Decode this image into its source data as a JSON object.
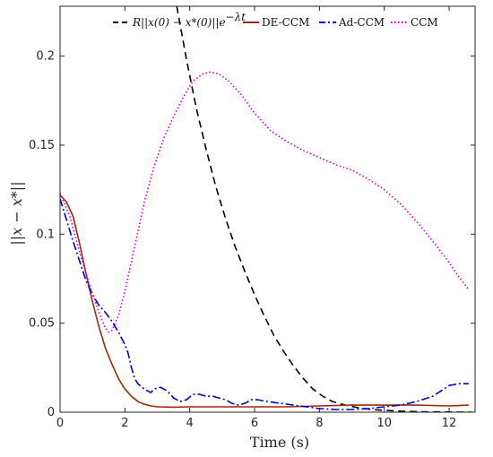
{
  "chart_data": {
    "type": "line",
    "title": "",
    "xlabel": "Time (s)",
    "ylabel": "||x − x*||",
    "xlim": [
      0,
      12.8
    ],
    "ylim": [
      0,
      0.228
    ],
    "xticks": [
      0,
      2,
      4,
      6,
      8,
      10,
      12
    ],
    "yticks": [
      0,
      0.05,
      0.1,
      0.15,
      0.2
    ],
    "ytick_labels": [
      "0",
      "0.05",
      "0.1",
      "0.15",
      "0.2"
    ],
    "grid": false,
    "legend": {
      "position": "top",
      "entries": [
        {
          "label_prefix": "R",
          "label_main": "||x(0) − x*(0)||",
          "label_e": "e",
          "label_sup": "−λt"
        },
        {
          "label": "DE-CCM"
        },
        {
          "label": "Ad-CCM"
        },
        {
          "label": "CCM"
        }
      ]
    },
    "series": [
      {
        "key": "bound",
        "color": "#000000",
        "dash": "8,5",
        "points": [
          [
            3.6,
            0.228
          ],
          [
            3.9,
            0.198
          ],
          [
            4.2,
            0.171
          ],
          [
            4.5,
            0.148
          ],
          [
            4.8,
            0.127
          ],
          [
            5.1,
            0.109
          ],
          [
            5.4,
            0.093
          ],
          [
            5.7,
            0.079
          ],
          [
            6.0,
            0.066
          ],
          [
            6.3,
            0.054
          ],
          [
            6.6,
            0.043
          ],
          [
            6.9,
            0.034
          ],
          [
            7.2,
            0.026
          ],
          [
            7.5,
            0.019
          ],
          [
            7.8,
            0.013
          ],
          [
            8.1,
            0.009
          ],
          [
            8.4,
            0.006
          ],
          [
            8.8,
            0.004
          ],
          [
            9.2,
            0.0025
          ],
          [
            9.6,
            0.0015
          ],
          [
            10.0,
            0.001
          ],
          [
            10.6,
            0.0005
          ],
          [
            11.2,
            0.0002
          ],
          [
            12.0,
            0.0001
          ],
          [
            12.7,
            0.0
          ]
        ]
      },
      {
        "key": "de_ccm",
        "color": "#a0280a",
        "dash": "",
        "points": [
          [
            0,
            0.122
          ],
          [
            0.2,
            0.118
          ],
          [
            0.4,
            0.11
          ],
          [
            0.6,
            0.095
          ],
          [
            0.8,
            0.078
          ],
          [
            1.0,
            0.062
          ],
          [
            1.2,
            0.048
          ],
          [
            1.4,
            0.036
          ],
          [
            1.6,
            0.027
          ],
          [
            1.8,
            0.019
          ],
          [
            2.0,
            0.013
          ],
          [
            2.2,
            0.009
          ],
          [
            2.4,
            0.006
          ],
          [
            2.6,
            0.0045
          ],
          [
            2.8,
            0.0035
          ],
          [
            3.0,
            0.003
          ],
          [
            3.5,
            0.0028
          ],
          [
            4.0,
            0.003
          ],
          [
            5.0,
            0.003
          ],
          [
            6.0,
            0.003
          ],
          [
            7.0,
            0.003
          ],
          [
            8.0,
            0.0035
          ],
          [
            9.0,
            0.004
          ],
          [
            10.0,
            0.004
          ],
          [
            11.0,
            0.004
          ],
          [
            12.0,
            0.0035
          ],
          [
            12.6,
            0.004
          ]
        ]
      },
      {
        "key": "ad_ccm",
        "color": "#0000cc",
        "dash": "9,3,2,3",
        "points": [
          [
            0,
            0.12
          ],
          [
            0.2,
            0.108
          ],
          [
            0.4,
            0.096
          ],
          [
            0.6,
            0.085
          ],
          [
            0.8,
            0.074
          ],
          [
            1.0,
            0.066
          ],
          [
            1.2,
            0.06
          ],
          [
            1.4,
            0.056
          ],
          [
            1.6,
            0.051
          ],
          [
            1.8,
            0.045
          ],
          [
            2.0,
            0.038
          ],
          [
            2.1,
            0.033
          ],
          [
            2.2,
            0.025
          ],
          [
            2.3,
            0.019
          ],
          [
            2.4,
            0.016
          ],
          [
            2.6,
            0.013
          ],
          [
            2.8,
            0.011
          ],
          [
            2.9,
            0.013
          ],
          [
            3.1,
            0.014
          ],
          [
            3.3,
            0.012
          ],
          [
            3.5,
            0.008
          ],
          [
            3.7,
            0.006
          ],
          [
            3.9,
            0.007
          ],
          [
            4.1,
            0.01
          ],
          [
            4.3,
            0.01
          ],
          [
            4.5,
            0.009
          ],
          [
            4.7,
            0.009
          ],
          [
            4.9,
            0.008
          ],
          [
            5.1,
            0.007
          ],
          [
            5.3,
            0.005
          ],
          [
            5.5,
            0.004
          ],
          [
            5.7,
            0.005
          ],
          [
            5.9,
            0.007
          ],
          [
            6.1,
            0.007
          ],
          [
            6.4,
            0.006
          ],
          [
            6.8,
            0.005
          ],
          [
            7.2,
            0.004
          ],
          [
            7.6,
            0.003
          ],
          [
            8.0,
            0.002
          ],
          [
            8.5,
            0.0015
          ],
          [
            9.0,
            0.0015
          ],
          [
            9.5,
            0.002
          ],
          [
            10.0,
            0.003
          ],
          [
            10.5,
            0.004
          ],
          [
            11.0,
            0.006
          ],
          [
            11.5,
            0.009
          ],
          [
            12.0,
            0.015
          ],
          [
            12.3,
            0.016
          ],
          [
            12.6,
            0.016
          ]
        ]
      },
      {
        "key": "ccm",
        "color": "#cc00cc",
        "dash": "1.5,2.5",
        "points": [
          [
            0,
            0.123
          ],
          [
            0.3,
            0.11
          ],
          [
            0.6,
            0.09
          ],
          [
            0.9,
            0.072
          ],
          [
            1.2,
            0.056
          ],
          [
            1.4,
            0.047
          ],
          [
            1.5,
            0.045
          ],
          [
            1.6,
            0.046
          ],
          [
            1.8,
            0.054
          ],
          [
            2.0,
            0.068
          ],
          [
            2.3,
            0.093
          ],
          [
            2.6,
            0.118
          ],
          [
            2.9,
            0.138
          ],
          [
            3.2,
            0.154
          ],
          [
            3.5,
            0.166
          ],
          [
            3.8,
            0.177
          ],
          [
            4.1,
            0.186
          ],
          [
            4.4,
            0.19
          ],
          [
            4.6,
            0.191
          ],
          [
            4.9,
            0.19
          ],
          [
            5.2,
            0.186
          ],
          [
            5.6,
            0.178
          ],
          [
            6.0,
            0.168
          ],
          [
            6.5,
            0.158
          ],
          [
            7.0,
            0.152
          ],
          [
            7.5,
            0.147
          ],
          [
            8.0,
            0.143
          ],
          [
            8.5,
            0.139
          ],
          [
            9.0,
            0.136
          ],
          [
            9.5,
            0.131
          ],
          [
            10.0,
            0.125
          ],
          [
            10.5,
            0.117
          ],
          [
            11.0,
            0.107
          ],
          [
            11.5,
            0.096
          ],
          [
            12.0,
            0.084
          ],
          [
            12.3,
            0.076
          ],
          [
            12.6,
            0.069
          ]
        ]
      }
    ]
  }
}
